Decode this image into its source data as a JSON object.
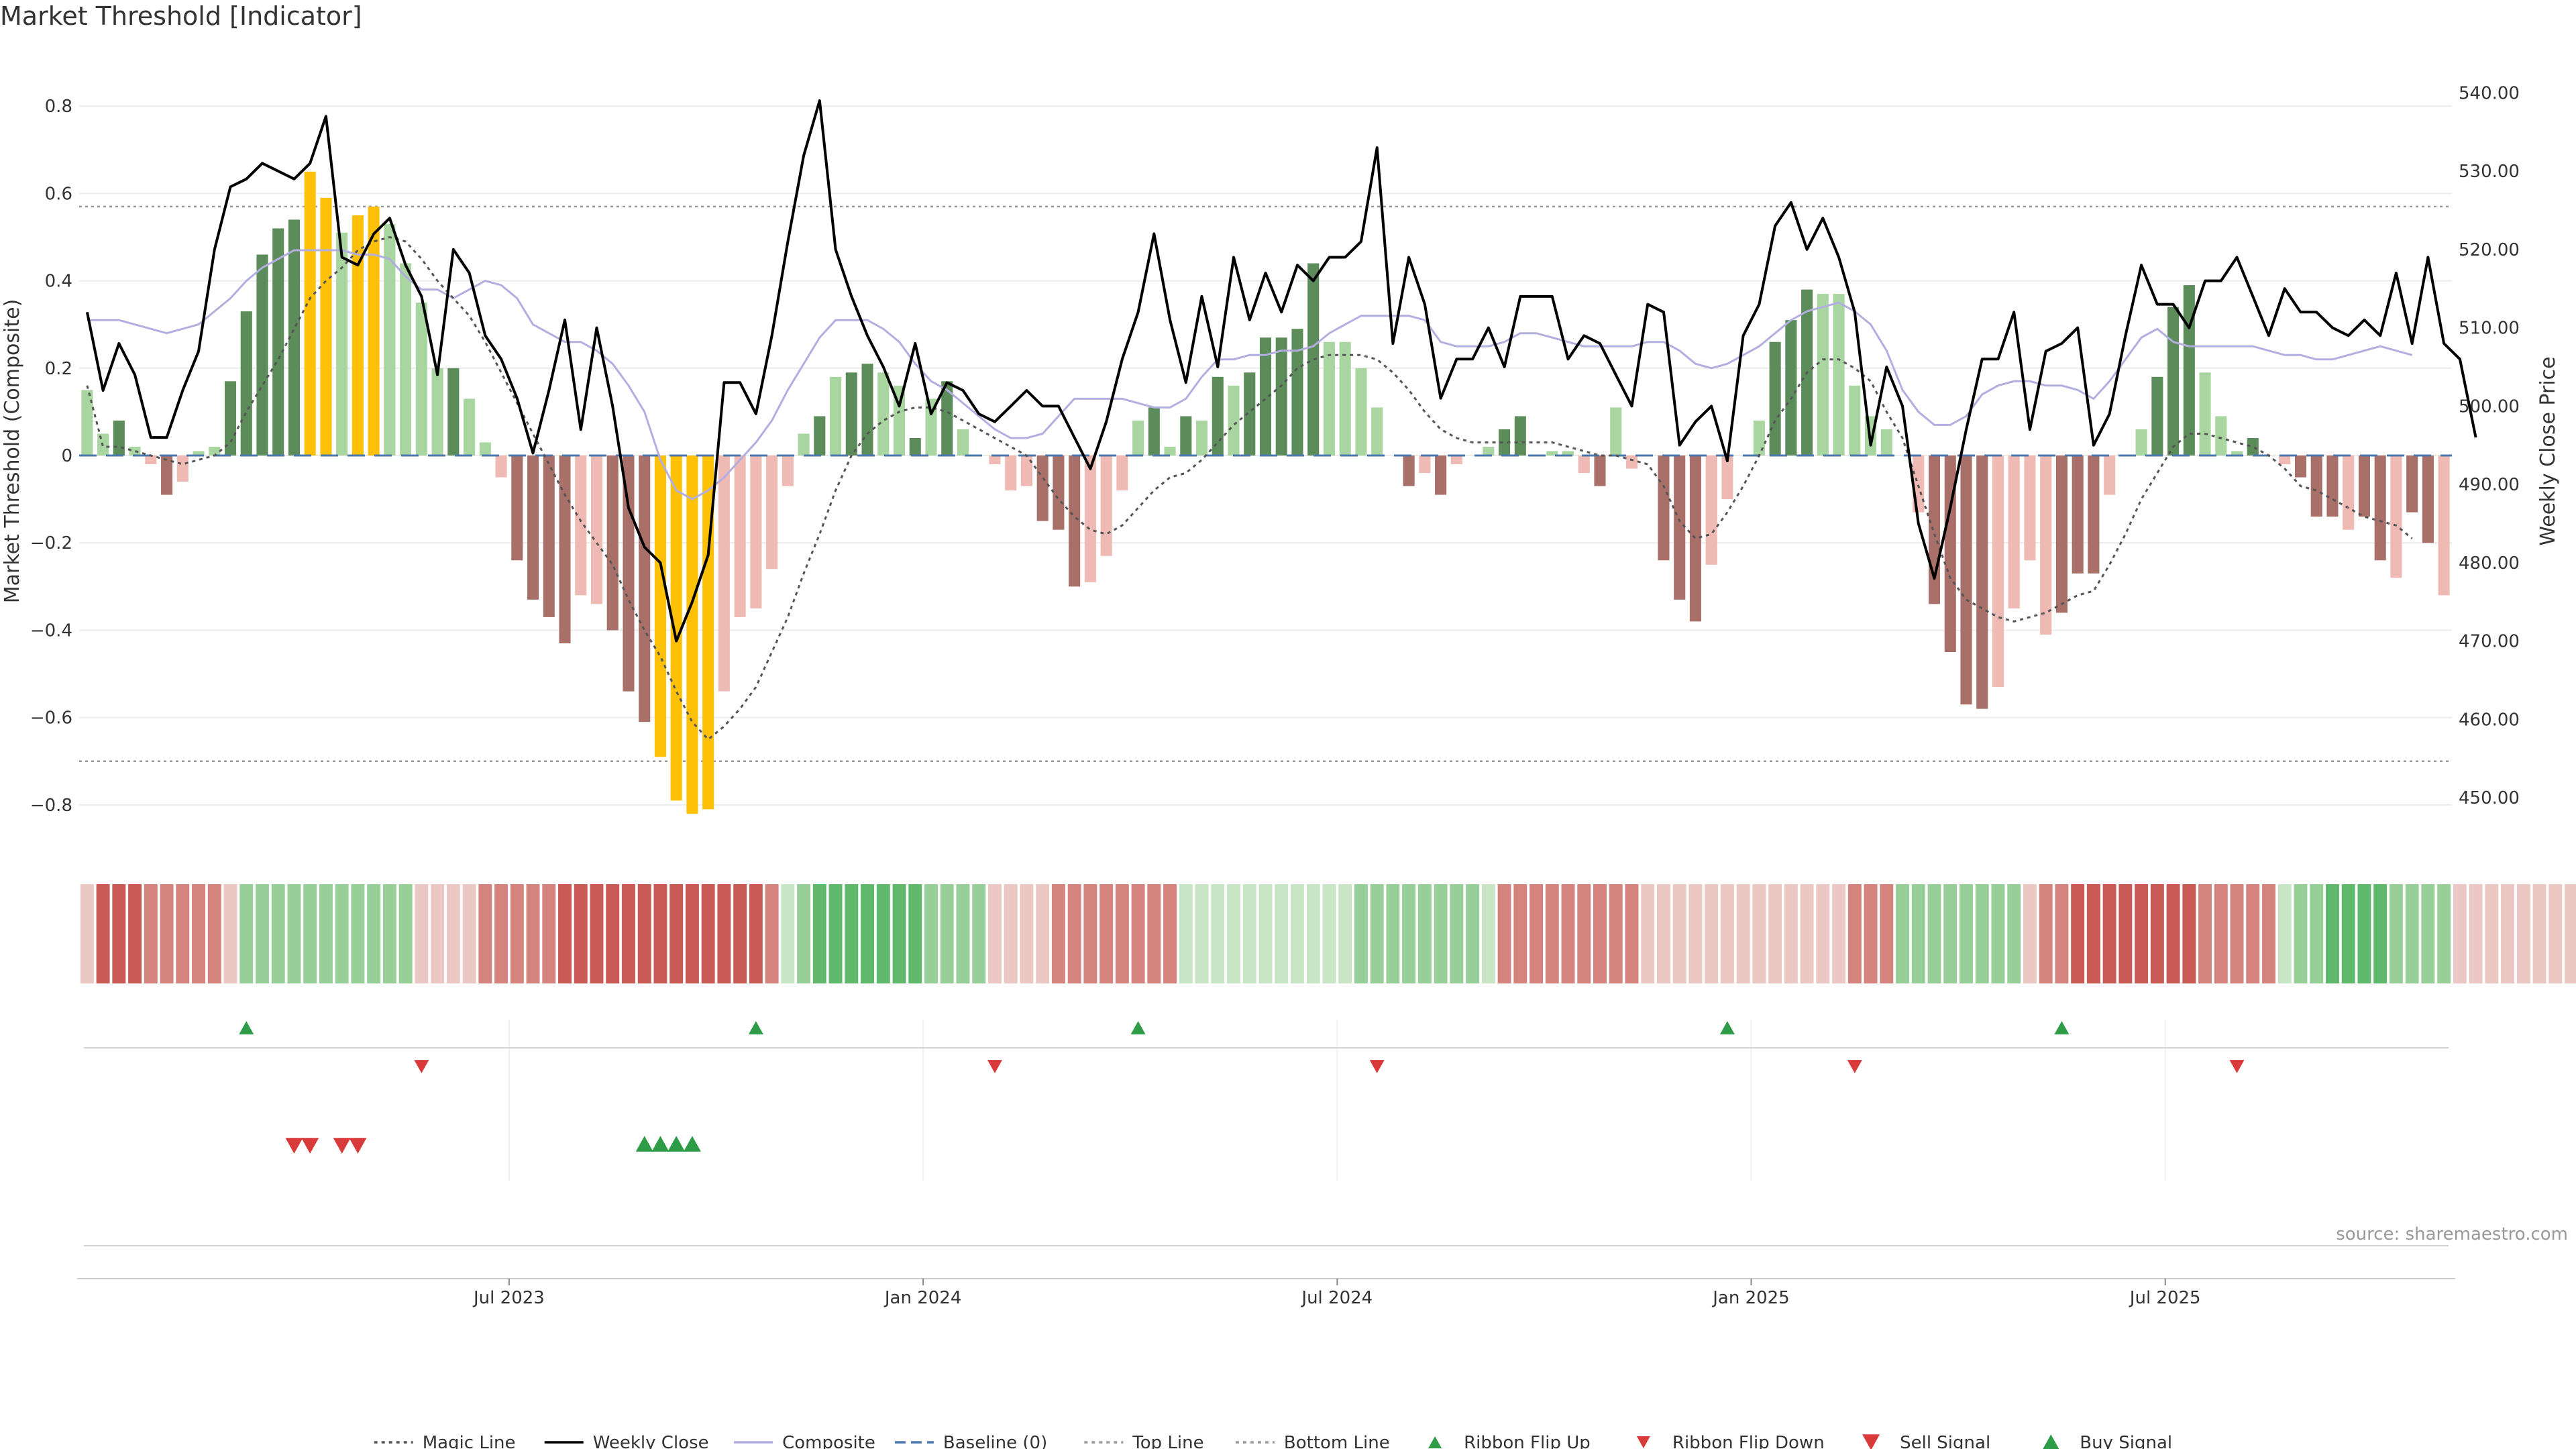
{
  "title": "Market Threshold [Indicator]",
  "source": "source: sharemaestro.com",
  "colors": {
    "bull_dark": "#5b8c5a",
    "bull_light": "#a9d6a0",
    "bear_dark": "#a87068",
    "bear_light": "#efbab4",
    "extreme": "#ffc107",
    "close": "#000000",
    "composite": "#b3aee0",
    "magic": "#555555",
    "baseline": "#4a78b0",
    "threshold": "#999999",
    "ribbon_bull": "#5fb86b",
    "ribbon_bear": "#c95a55",
    "signal_up": "#2e9b47",
    "signal_down": "#d93a3a"
  },
  "chart_data": {
    "type": "bar",
    "title": "Market Threshold [Indicator]",
    "ylabel": "Market Threshold (Composite)",
    "y2label": "Weekly Close Price",
    "ylim": [
      -0.9,
      0.92
    ],
    "y2lim": [
      443.5,
      545.0
    ],
    "yticks": [
      0.8,
      0.6,
      0.4,
      0.2,
      0,
      -0.2,
      -0.4,
      -0.6,
      -0.8
    ],
    "ytick_labels": [
      "0.8",
      "0.6",
      "0.4",
      "0.2",
      "0",
      "−0.2",
      "−0.4",
      "−0.6",
      "−0.8"
    ],
    "y2ticks": [
      540,
      530,
      520,
      510,
      500,
      490,
      480,
      470,
      460,
      450
    ],
    "y2tick_labels": [
      "540.00",
      "530.00",
      "520.00",
      "510.00",
      "500.00",
      "490.00",
      "480.00",
      "470.00",
      "460.00",
      "450.00"
    ],
    "top_line": 0.57,
    "bottom_line": -0.7,
    "baseline": 0,
    "xticks": [
      {
        "label": "Jul 2023",
        "week": 27
      },
      {
        "label": "Jan 2024",
        "week": 53
      },
      {
        "label": "Jul 2024",
        "week": 79
      },
      {
        "label": "Jan 2025",
        "week": 105
      },
      {
        "label": "Jul 2025",
        "week": 131
      }
    ],
    "composite_bars": [
      0.15,
      0.05,
      0.08,
      0.02,
      -0.02,
      -0.09,
      -0.06,
      0.01,
      0.02,
      0.17,
      0.33,
      0.46,
      0.52,
      0.54,
      0.65,
      0.59,
      0.51,
      0.55,
      0.57,
      0.53,
      0.44,
      0.35,
      0.2,
      0.2,
      0.13,
      0.03,
      -0.05,
      -0.24,
      -0.33,
      -0.37,
      -0.43,
      -0.32,
      -0.34,
      -0.4,
      -0.54,
      -0.61,
      -0.69,
      -0.79,
      -0.82,
      -0.81,
      -0.54,
      -0.37,
      -0.35,
      -0.26,
      -0.07,
      0.05,
      0.09,
      0.18,
      0.19,
      0.21,
      0.19,
      0.16,
      0.04,
      0.13,
      0.17,
      0.06,
      0,
      -0.02,
      -0.08,
      -0.07,
      -0.15,
      -0.17,
      -0.3,
      -0.29,
      -0.23,
      -0.08,
      0.08,
      0.11,
      0.02,
      0.09,
      0.08,
      0.18,
      0.16,
      0.19,
      0.27,
      0.27,
      0.29,
      0.44,
      0.26,
      0.26,
      0.2,
      0.11,
      0,
      -0.07,
      -0.04,
      -0.09,
      -0.02,
      0,
      0.02,
      0.06,
      0.09,
      0,
      0.01,
      0.01,
      -0.04,
      -0.07,
      0.11,
      -0.03,
      0,
      -0.24,
      -0.33,
      -0.38,
      -0.25,
      -0.1,
      0,
      0.08,
      0.26,
      0.31,
      0.38,
      0.37,
      0.37,
      0.16,
      0.09,
      0.06,
      0,
      -0.13,
      -0.34,
      -0.45,
      -0.57,
      -0.58,
      -0.53,
      -0.35,
      -0.24,
      -0.41,
      -0.36,
      -0.27,
      -0.27,
      -0.09,
      0,
      0.06,
      0.18,
      0.34,
      0.39,
      0.19,
      0.09,
      0.01,
      0.04,
      0,
      -0.02,
      -0.05,
      -0.14,
      -0.14,
      -0.17,
      -0.14,
      -0.24,
      -0.28,
      -0.13,
      -0.2,
      -0.32
    ],
    "bar_styles": [
      "l",
      "l",
      "d",
      "l",
      "l",
      "d",
      "l",
      "l",
      "l",
      "d",
      "d",
      "d",
      "d",
      "d",
      "y",
      "y",
      "l",
      "y",
      "y",
      "l",
      "l",
      "l",
      "l",
      "d",
      "l",
      "l",
      "l",
      "d",
      "d",
      "d",
      "d",
      "l",
      "l",
      "d",
      "d",
      "d",
      "y",
      "y",
      "y",
      "y",
      "l",
      "l",
      "l",
      "l",
      "l",
      "l",
      "d",
      "l",
      "d",
      "d",
      "l",
      "l",
      "d",
      "l",
      "d",
      "l",
      "l",
      "l",
      "l",
      "l",
      "d",
      "d",
      "d",
      "l",
      "l",
      "l",
      "l",
      "d",
      "l",
      "d",
      "l",
      "d",
      "l",
      "d",
      "d",
      "d",
      "d",
      "d",
      "l",
      "l",
      "l",
      "l",
      "l",
      "d",
      "l",
      "d",
      "l",
      "l",
      "l",
      "d",
      "d",
      "l",
      "l",
      "l",
      "l",
      "d",
      "l",
      "l",
      "l",
      "d",
      "d",
      "d",
      "l",
      "l",
      "l",
      "l",
      "d",
      "d",
      "d",
      "l",
      "l",
      "l",
      "l",
      "l",
      "l",
      "l",
      "d",
      "d",
      "d",
      "d",
      "l",
      "l",
      "l",
      "l",
      "d",
      "d",
      "d",
      "l",
      "l",
      "l",
      "d",
      "d",
      "d",
      "l",
      "l",
      "l",
      "d",
      "l",
      "l",
      "d",
      "d",
      "d",
      "l",
      "d",
      "d",
      "l",
      "d",
      "d"
    ],
    "weekly_close": [
      512,
      502,
      508,
      504,
      496,
      496,
      502,
      507,
      520,
      528,
      529,
      531,
      530,
      529,
      531,
      537,
      519,
      518,
      522,
      524,
      518,
      514,
      504,
      520,
      517,
      509,
      506,
      501,
      494,
      502,
      511,
      497,
      510,
      500,
      487,
      482,
      480,
      470,
      475,
      481,
      503,
      503,
      499,
      509,
      521,
      532,
      539,
      520,
      514,
      509,
      505,
      500,
      508,
      499,
      503,
      502,
      499,
      498,
      500,
      502,
      500,
      500,
      496,
      492,
      498,
      506,
      512,
      522,
      511,
      503,
      514,
      505,
      519,
      511,
      517,
      512,
      518,
      516,
      519,
      519,
      521,
      533,
      508,
      519,
      513,
      501,
      506,
      506,
      510,
      505,
      514,
      514,
      514,
      506,
      509,
      508,
      504,
      500,
      513,
      512,
      495,
      498,
      500,
      493,
      509,
      513,
      523,
      526,
      520,
      524,
      519,
      512,
      495,
      505,
      500,
      485,
      478,
      487,
      497,
      506,
      506,
      512,
      497,
      507,
      508,
      510,
      495,
      499,
      509,
      518,
      513,
      513,
      510,
      516,
      516,
      519,
      514,
      509,
      515,
      512,
      512,
      510,
      509,
      511,
      509,
      517,
      508,
      519,
      508,
      506,
      496
    ],
    "composite_line": [
      0.31,
      0.31,
      0.31,
      0.3,
      0.29,
      0.28,
      0.29,
      0.3,
      0.33,
      0.36,
      0.4,
      0.43,
      0.45,
      0.47,
      0.47,
      0.47,
      0.47,
      0.46,
      0.46,
      0.45,
      0.41,
      0.38,
      0.38,
      0.36,
      0.38,
      0.4,
      0.39,
      0.36,
      0.3,
      0.28,
      0.26,
      0.26,
      0.24,
      0.21,
      0.16,
      0.1,
      -0.01,
      -0.08,
      -0.1,
      -0.08,
      -0.05,
      -0.01,
      0.03,
      0.08,
      0.15,
      0.21,
      0.27,
      0.31,
      0.31,
      0.31,
      0.29,
      0.26,
      0.21,
      0.17,
      0.15,
      0.12,
      0.09,
      0.06,
      0.04,
      0.04,
      0.05,
      0.09,
      0.13,
      0.13,
      0.13,
      0.13,
      0.12,
      0.11,
      0.11,
      0.13,
      0.18,
      0.22,
      0.22,
      0.23,
      0.23,
      0.24,
      0.24,
      0.25,
      0.28,
      0.3,
      0.32,
      0.32,
      0.32,
      0.32,
      0.31,
      0.26,
      0.25,
      0.25,
      0.25,
      0.26,
      0.28,
      0.28,
      0.27,
      0.26,
      0.25,
      0.25,
      0.25,
      0.25,
      0.26,
      0.26,
      0.24,
      0.21,
      0.2,
      0.21,
      0.23,
      0.25,
      0.28,
      0.31,
      0.33,
      0.34,
      0.35,
      0.33,
      0.3,
      0.24,
      0.15,
      0.1,
      0.07,
      0.07,
      0.09,
      0.14,
      0.16,
      0.17,
      0.17,
      0.16,
      0.16,
      0.15,
      0.13,
      0.17,
      0.22,
      0.27,
      0.29,
      0.26,
      0.25,
      0.25,
      0.25,
      0.25,
      0.25,
      0.24,
      0.23,
      0.23,
      0.22,
      0.22,
      0.23,
      0.24,
      0.25,
      0.24,
      0.23
    ],
    "magic_line": [
      0.16,
      0.02,
      0.02,
      0.01,
      0.0,
      -0.01,
      -0.02,
      -0.01,
      0.0,
      0.03,
      0.1,
      0.16,
      0.22,
      0.29,
      0.36,
      0.4,
      0.43,
      0.47,
      0.49,
      0.5,
      0.49,
      0.45,
      0.4,
      0.36,
      0.32,
      0.26,
      0.19,
      0.12,
      0.05,
      -0.02,
      -0.09,
      -0.15,
      -0.2,
      -0.25,
      -0.33,
      -0.4,
      -0.46,
      -0.54,
      -0.61,
      -0.65,
      -0.62,
      -0.58,
      -0.53,
      -0.45,
      -0.37,
      -0.27,
      -0.18,
      -0.08,
      0.0,
      0.05,
      0.08,
      0.1,
      0.11,
      0.11,
      0.1,
      0.08,
      0.06,
      0.04,
      0.02,
      0.0,
      -0.05,
      -0.1,
      -0.14,
      -0.17,
      -0.18,
      -0.16,
      -0.12,
      -0.08,
      -0.05,
      -0.04,
      -0.01,
      0.03,
      0.07,
      0.1,
      0.13,
      0.16,
      0.2,
      0.22,
      0.23,
      0.23,
      0.23,
      0.22,
      0.19,
      0.15,
      0.1,
      0.06,
      0.04,
      0.03,
      0.03,
      0.03,
      0.03,
      0.03,
      0.03,
      0.02,
      0.01,
      0.0,
      0.0,
      -0.01,
      -0.02,
      -0.07,
      -0.15,
      -0.19,
      -0.18,
      -0.13,
      -0.07,
      0.0,
      0.08,
      0.13,
      0.19,
      0.22,
      0.22,
      0.2,
      0.17,
      0.1,
      0.04,
      -0.07,
      -0.18,
      -0.28,
      -0.33,
      -0.35,
      -0.37,
      -0.38,
      -0.37,
      -0.36,
      -0.34,
      -0.32,
      -0.31,
      -0.25,
      -0.18,
      -0.1,
      -0.04,
      0.02,
      0.05,
      0.05,
      0.04,
      0.03,
      0.02,
      0.0,
      -0.03,
      -0.07,
      -0.08,
      -0.1,
      -0.12,
      -0.14,
      -0.15,
      -0.16,
      -0.19
    ],
    "ribbon_tiers": [
      1,
      3,
      3,
      3,
      2,
      2,
      2,
      2,
      2,
      1,
      -2,
      -2,
      -2,
      -2,
      -2,
      -2,
      -2,
      -2,
      -2,
      -2,
      -2,
      1,
      1,
      1,
      1,
      2,
      2,
      2,
      2,
      2,
      3,
      3,
      3,
      3,
      3,
      3,
      3,
      3,
      3,
      3,
      3,
      3,
      3,
      2,
      -1,
      -2,
      -3,
      -3,
      -3,
      -3,
      -3,
      -3,
      -3,
      -2,
      -2,
      -2,
      -2,
      1,
      1,
      1,
      1,
      2,
      2,
      2,
      2,
      2,
      2,
      2,
      2,
      -1,
      -1,
      -1,
      -1,
      -1,
      -1,
      -1,
      -1,
      -1,
      -1,
      -1,
      -2,
      -2,
      -2,
      -2,
      -2,
      -2,
      -2,
      -2,
      -1,
      2,
      2,
      2,
      2,
      2,
      2,
      2,
      2,
      2,
      1,
      1,
      1,
      1,
      1,
      1,
      1,
      1,
      1,
      1,
      1,
      1,
      1,
      2,
      2,
      2,
      -2,
      -2,
      -2,
      -2,
      -2,
      -2,
      -2,
      -2,
      1,
      2,
      2,
      3,
      3,
      3,
      3,
      3,
      3,
      3,
      3,
      2,
      2,
      2,
      2,
      2,
      -1,
      -2,
      -2,
      -3,
      -3,
      -3,
      -3,
      -2,
      -2,
      -2,
      -2,
      1,
      1,
      1,
      1,
      1,
      1,
      1,
      1,
      1,
      1,
      1,
      1,
      1
    ],
    "ribbon_flip_up": [
      10,
      42,
      66,
      103,
      124
    ],
    "ribbon_flip_down": [
      21,
      57,
      81,
      111,
      135
    ],
    "sell_signals": [
      13,
      14,
      16,
      17
    ],
    "buy_signals": [
      35,
      36,
      37,
      38
    ]
  },
  "legend": [
    {
      "label": "Magic Line",
      "kind": "dotted",
      "color_key": "magic"
    },
    {
      "label": "Weekly Close",
      "kind": "solid",
      "color_key": "close"
    },
    {
      "label": "Composite",
      "kind": "solid",
      "color_key": "composite"
    },
    {
      "label": "Baseline (0)",
      "kind": "dashed",
      "color_key": "baseline"
    },
    {
      "label": "Top Line",
      "kind": "dotted",
      "color_key": "threshold"
    },
    {
      "label": "Bottom Line",
      "kind": "dotted",
      "color_key": "threshold"
    },
    {
      "label": "Ribbon Flip Up",
      "kind": "tri-up",
      "color_key": "signal_up"
    },
    {
      "label": "Ribbon Flip Down",
      "kind": "tri-down",
      "color_key": "signal_down"
    },
    {
      "label": "Sell Signal",
      "kind": "tri-down-big",
      "color_key": "signal_down"
    },
    {
      "label": "Buy Signal",
      "kind": "tri-up-big",
      "color_key": "signal_up"
    }
  ]
}
